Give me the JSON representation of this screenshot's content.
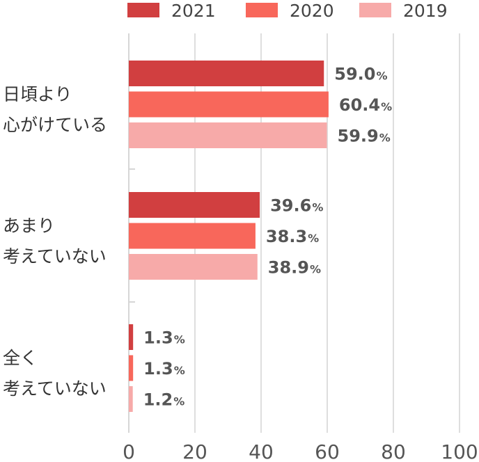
{
  "chart_data": {
    "type": "bar",
    "orientation": "horizontal",
    "categories": [
      [
        "日頃より",
        "心がけている"
      ],
      [
        "あまり",
        "考えていない"
      ],
      [
        "全く",
        "考えていない"
      ]
    ],
    "series": [
      {
        "name": "2021",
        "color": "#d13f40",
        "values": [
          59.0,
          39.6,
          1.3
        ],
        "labels": [
          "59.0",
          "39.6",
          "1.3"
        ]
      },
      {
        "name": "2020",
        "color": "#f8675b",
        "values": [
          60.4,
          38.3,
          1.3
        ],
        "labels": [
          "60.4",
          "38.3",
          "1.3"
        ]
      },
      {
        "name": "2019",
        "color": "#f7aaa9",
        "values": [
          59.9,
          38.9,
          1.2
        ],
        "labels": [
          "59.9",
          "38.9",
          "1.2"
        ]
      }
    ],
    "value_unit": "%",
    "xlim": [
      0,
      100
    ],
    "ticks": [
      "0",
      "20",
      "40",
      "60",
      "80",
      "100"
    ],
    "grid": true,
    "legend_position": "top",
    "title": "",
    "xlabel": "",
    "ylabel": ""
  }
}
